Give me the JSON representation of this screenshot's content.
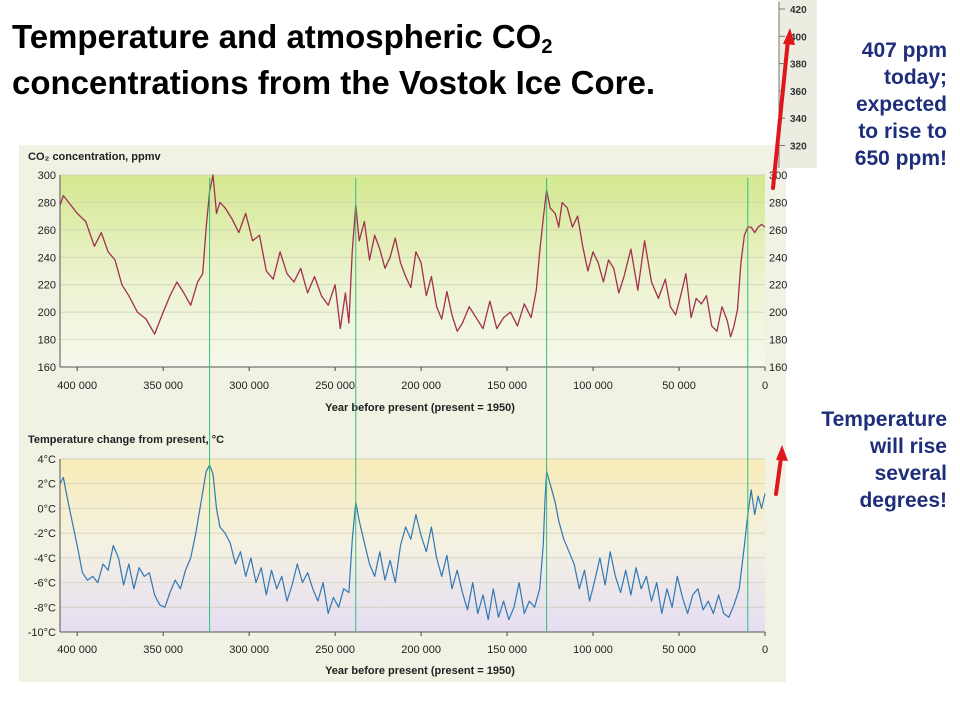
{
  "slide": {
    "title_line1": "Temperature and atmospheric CO",
    "title_sub": "2",
    "title_line2": "concentrations from the Vostok Ice Core.",
    "callout_co2": [
      "407 ppm",
      "today;",
      "expected",
      "to rise to",
      "650 ppm!"
    ],
    "callout_temp": [
      "Temperature",
      "will rise",
      "several",
      "degrees!"
    ],
    "colors": {
      "callout_text": "#1f2e7a",
      "arrow": "#e0161c",
      "co2_line": "#a3304f",
      "temp_line": "#2f78b5",
      "marker_line": "#2fbf7a"
    }
  },
  "chart_data": [
    {
      "type": "line",
      "ylabel": "CO₂ concentration, ppmv",
      "xlabel": "Year before present (present = 1950)",
      "ylim": [
        160,
        300
      ],
      "xlim": [
        410000,
        0
      ],
      "y_ticks": [
        "300",
        "280",
        "260",
        "240",
        "220",
        "200",
        "180",
        "160"
      ],
      "x_ticks": [
        "400 000",
        "350 000",
        "300 000",
        "250 000",
        "200 000",
        "150 000",
        "100 000",
        "50 000",
        "0"
      ],
      "grid": true,
      "series": [
        {
          "x": [
            410000,
            408000,
            405000,
            400000,
            395000,
            390000,
            386000,
            382000,
            378000,
            374000,
            370000,
            365000,
            360000,
            355000,
            350000,
            346000,
            342000,
            338000,
            334000,
            330000,
            327000,
            325000,
            323000,
            321000,
            319000,
            317000,
            314000,
            310000,
            306000,
            302000,
            298000,
            294000,
            290000,
            286000,
            282000,
            278000,
            274000,
            270000,
            266000,
            262000,
            258000,
            254000,
            250000,
            247000,
            244000,
            242000,
            240000,
            238000,
            236000,
            233000,
            230000,
            227000,
            224000,
            221000,
            218000,
            215000,
            212000,
            209000,
            206000,
            203000,
            200000,
            197000,
            194000,
            191000,
            188000,
            185000,
            182000,
            179000,
            176000,
            172000,
            168000,
            164000,
            160000,
            156000,
            152000,
            148000,
            144000,
            140000,
            136000,
            133000,
            131000,
            129000,
            127000,
            125000,
            122000,
            120000,
            118000,
            115000,
            112000,
            109000,
            106000,
            103000,
            100000,
            97000,
            94000,
            91000,
            88000,
            85000,
            82000,
            78000,
            74000,
            70000,
            66000,
            62000,
            58000,
            55000,
            52000,
            49000,
            46000,
            43000,
            40000,
            37000,
            34000,
            31000,
            28000,
            25000,
            22000,
            20000,
            18000,
            16000,
            14000,
            12000,
            10000,
            8000,
            6000,
            4000,
            2000,
            0
          ],
          "y": [
            278,
            285,
            280,
            272,
            266,
            248,
            258,
            244,
            238,
            220,
            212,
            200,
            195,
            184,
            200,
            212,
            222,
            214,
            205,
            222,
            228,
            262,
            288,
            300,
            272,
            280,
            276,
            268,
            258,
            272,
            252,
            256,
            230,
            224,
            244,
            228,
            222,
            232,
            214,
            226,
            212,
            205,
            220,
            188,
            214,
            192,
            245,
            278,
            252,
            266,
            238,
            256,
            246,
            232,
            240,
            254,
            236,
            226,
            218,
            244,
            236,
            212,
            226,
            204,
            195,
            215,
            198,
            186,
            192,
            204,
            196,
            188,
            208,
            188,
            196,
            200,
            190,
            206,
            196,
            216,
            244,
            268,
            289,
            276,
            272,
            262,
            280,
            276,
            262,
            270,
            248,
            230,
            244,
            236,
            222,
            238,
            232,
            214,
            226,
            246,
            216,
            252,
            222,
            210,
            224,
            204,
            198,
            212,
            228,
            196,
            210,
            206,
            212,
            190,
            186,
            204,
            194,
            182,
            190,
            202,
            236,
            256,
            262,
            262,
            258,
            262,
            264,
            262
          ]
        }
      ]
    },
    {
      "type": "line",
      "ylabel": "Temperature change from present, °C",
      "xlabel": "Year before present (present = 1950)",
      "ylim": [
        -10,
        4
      ],
      "xlim": [
        410000,
        0
      ],
      "y_ticks": [
        "4°C",
        "2°C",
        "0°C",
        "-2°C",
        "-4°C",
        "-6°C",
        "-8°C",
        "-10°C"
      ],
      "x_ticks": [
        "400 000",
        "350 000",
        "300 000",
        "250 000",
        "200 000",
        "150 000",
        "100 000",
        "50 000",
        "0"
      ],
      "grid": true,
      "series": [
        {
          "x": [
            410000,
            408000,
            406000,
            403000,
            400000,
            397000,
            394000,
            391000,
            388000,
            385000,
            382000,
            379000,
            376000,
            373000,
            370000,
            367000,
            364000,
            361000,
            358000,
            355000,
            352000,
            349000,
            346000,
            343000,
            340000,
            337000,
            334000,
            331000,
            328000,
            325000,
            323000,
            321000,
            319000,
            317000,
            314000,
            311000,
            308000,
            305000,
            302000,
            299000,
            296000,
            293000,
            290000,
            287000,
            284000,
            281000,
            278000,
            275000,
            272000,
            269000,
            266000,
            263000,
            260000,
            257000,
            254000,
            251000,
            248000,
            245000,
            242000,
            240000,
            238000,
            236000,
            233000,
            230000,
            227000,
            224000,
            221000,
            218000,
            215000,
            212000,
            209000,
            206000,
            203000,
            200000,
            197000,
            194000,
            191000,
            188000,
            185000,
            182000,
            179000,
            176000,
            173000,
            170000,
            167000,
            164000,
            161000,
            158000,
            155000,
            152000,
            149000,
            146000,
            143000,
            140000,
            137000,
            134000,
            131000,
            129000,
            128000,
            127000,
            126000,
            124000,
            122000,
            120000,
            117000,
            114000,
            111000,
            108000,
            105000,
            102000,
            99000,
            96000,
            93000,
            90000,
            87000,
            84000,
            81000,
            78000,
            75000,
            72000,
            69000,
            66000,
            63000,
            60000,
            57000,
            54000,
            51000,
            48000,
            45000,
            42000,
            39000,
            36000,
            33000,
            30000,
            27000,
            24000,
            21000,
            18000,
            15000,
            12000,
            10000,
            8000,
            6000,
            4000,
            2000,
            0
          ],
          "y": [
            2.0,
            2.5,
            1.0,
            -1.0,
            -3.0,
            -5.2,
            -5.8,
            -5.5,
            -6.0,
            -4.5,
            -5.0,
            -3.0,
            -4.0,
            -6.2,
            -4.5,
            -6.5,
            -4.8,
            -5.5,
            -5.2,
            -7.0,
            -7.8,
            -8.0,
            -6.8,
            -5.8,
            -6.5,
            -5.0,
            -4.0,
            -2.0,
            0.5,
            3.0,
            3.5,
            2.8,
            0.0,
            -1.5,
            -2.0,
            -2.8,
            -4.5,
            -3.5,
            -5.5,
            -4.0,
            -6.0,
            -4.8,
            -7.0,
            -5.0,
            -6.5,
            -5.5,
            -7.5,
            -6.2,
            -4.5,
            -6.0,
            -5.2,
            -6.5,
            -7.5,
            -6.0,
            -8.5,
            -7.2,
            -8.0,
            -6.5,
            -6.8,
            -2.5,
            0.5,
            -1.0,
            -2.8,
            -4.5,
            -5.5,
            -3.5,
            -5.8,
            -4.2,
            -6.0,
            -3.0,
            -1.5,
            -2.5,
            -0.5,
            -2.2,
            -3.5,
            -1.5,
            -4.0,
            -5.5,
            -3.8,
            -6.5,
            -5.0,
            -6.8,
            -8.2,
            -6.0,
            -8.5,
            -7.0,
            -9.0,
            -6.5,
            -8.8,
            -7.5,
            -9.0,
            -8.0,
            -6.0,
            -8.5,
            -7.5,
            -8.0,
            -6.5,
            -3.0,
            0.5,
            3.0,
            2.5,
            1.5,
            0.5,
            -1.0,
            -2.5,
            -3.5,
            -4.5,
            -6.5,
            -5.0,
            -7.5,
            -5.8,
            -4.0,
            -6.2,
            -3.5,
            -5.5,
            -6.8,
            -5.0,
            -7.0,
            -4.8,
            -6.5,
            -5.5,
            -7.5,
            -6.0,
            -8.5,
            -6.5,
            -8.0,
            -5.5,
            -7.2,
            -8.5,
            -7.0,
            -6.5,
            -8.2,
            -7.5,
            -8.5,
            -7.0,
            -8.5,
            -8.8,
            -7.8,
            -6.5,
            -3.0,
            -0.5,
            1.5,
            -0.5,
            1.0,
            0.0,
            1.2
          ]
        }
      ]
    }
  ]
}
